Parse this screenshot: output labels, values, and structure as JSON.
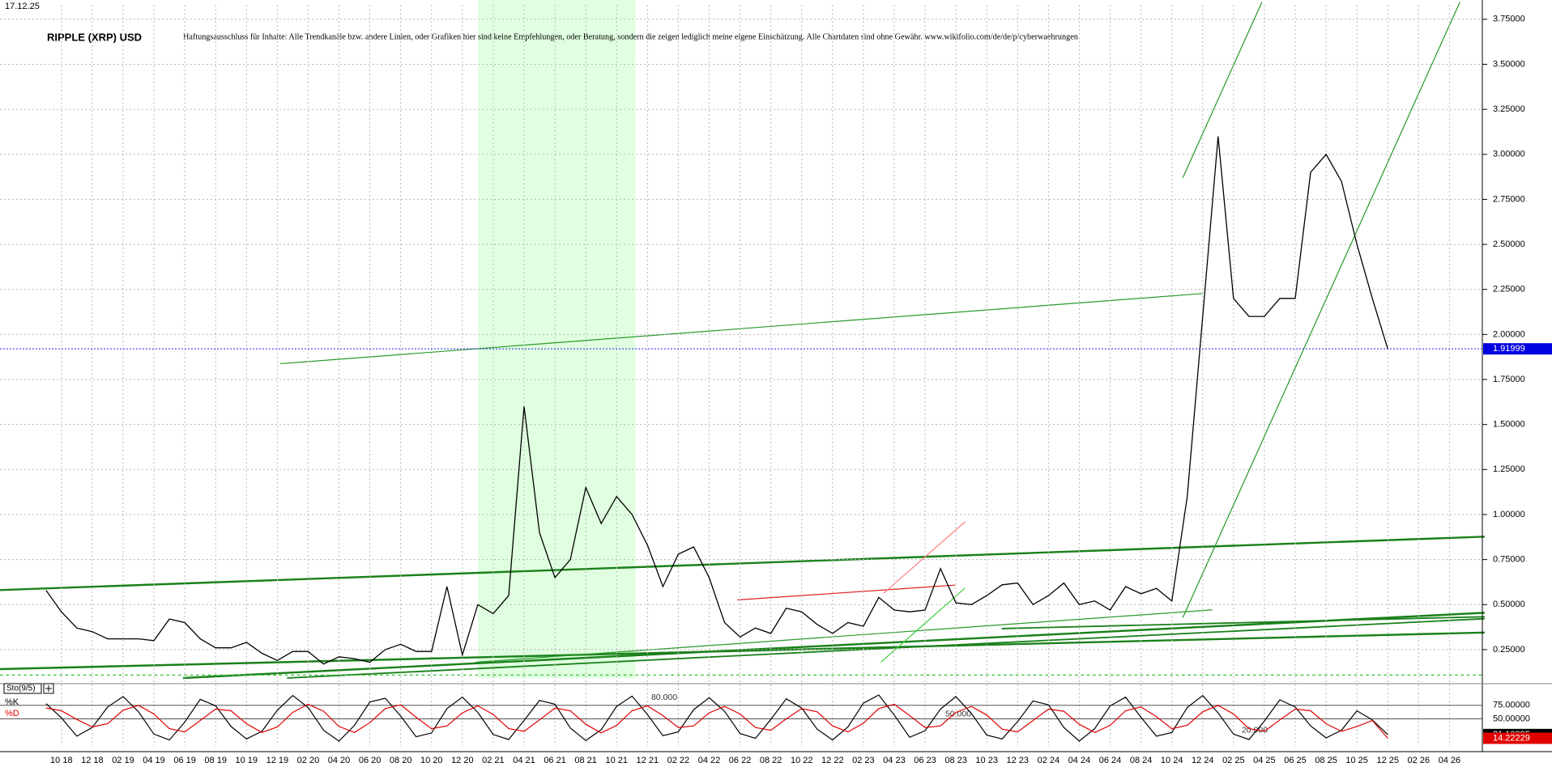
{
  "date": "17.12.25",
  "chart_data": {
    "type": "line",
    "title": "RIPPLE (XRP) USD",
    "subtitle": "Haftungsausschluss für Inhalte: Alle Trendkanäle bzw. andere Linien, oder Grafiken hier sind keine Empfehlungen, oder Beratung, sondern die zeigen lediglich meine eigene Einschätzung. Alle Chartdaten sind ohne Gewähr.  www.wikifolio.com/de/de/p/cyberwaehrungen",
    "indicator": "Sto(9/5)",
    "categories": [
      null,
      "10 18",
      null,
      "12 18",
      null,
      "02 19",
      null,
      "04 19",
      null,
      "06 19",
      null,
      "08 19",
      null,
      "10 19",
      null,
      "12 19",
      null,
      "02 20",
      null,
      "04 20",
      null,
      "06 20",
      null,
      "08 20",
      null,
      "10 20",
      null,
      "12 20",
      null,
      "02 21",
      null,
      "04 21",
      null,
      "06 21",
      null,
      "08 21",
      null,
      "10 21",
      null,
      "12 21",
      null,
      "02 22",
      null,
      "04 22",
      null,
      "06 22",
      null,
      "08 22",
      null,
      "10 22",
      null,
      "12 22",
      null,
      "02 23",
      null,
      "04 23",
      null,
      "06 23",
      null,
      "08 23",
      null,
      "10 23",
      null,
      "12 23",
      null,
      "02 24",
      null,
      "04 24",
      null,
      "06 24",
      null,
      "08 24",
      null,
      "10 24",
      null,
      "12 24",
      null,
      "02 25",
      null,
      "04 25",
      null,
      "06 25",
      null,
      "08 25",
      null,
      "10 25",
      null,
      "12 25",
      null,
      "02 26",
      null,
      "04 26"
    ],
    "values": [
      0.58,
      0.46,
      0.37,
      0.35,
      0.31,
      0.31,
      0.31,
      0.3,
      0.42,
      0.4,
      0.31,
      0.26,
      0.26,
      0.29,
      0.23,
      0.19,
      0.24,
      0.24,
      0.17,
      0.21,
      0.2,
      0.18,
      0.25,
      0.28,
      0.24,
      0.24,
      0.6,
      0.22,
      0.5,
      0.45,
      0.55,
      1.6,
      0.9,
      0.65,
      0.75,
      1.15,
      0.95,
      1.1,
      1.0,
      0.83,
      0.6,
      0.78,
      0.82,
      0.65,
      0.4,
      0.32,
      0.37,
      0.34,
      0.48,
      0.46,
      0.39,
      0.34,
      0.4,
      0.38,
      0.54,
      0.47,
      0.46,
      0.47,
      0.7,
      0.51,
      0.5,
      0.55,
      0.61,
      0.62,
      0.5,
      0.55,
      0.62,
      0.5,
      0.52,
      0.47,
      0.6,
      0.56,
      0.59,
      0.52,
      1.1,
      2.1,
      3.1,
      2.2,
      2.1,
      2.1,
      2.2,
      2.2,
      2.9,
      3.0,
      2.85,
      2.5,
      2.2,
      1.91999,
      null,
      null,
      null,
      null
    ],
    "color": "#000000",
    "ylim": [
      0.07,
      3.83
    ],
    "yticks": [
      {
        "value": 0.25,
        "label": "0.25000"
      },
      {
        "value": 0.5,
        "label": "0.50000"
      },
      {
        "value": 0.75,
        "label": "0.75000"
      },
      {
        "value": 1,
        "label": "1.00000"
      },
      {
        "value": 1.25,
        "label": "1.25000"
      },
      {
        "value": 1.5,
        "label": "1.50000"
      },
      {
        "value": 1.75,
        "label": "1.75000"
      },
      {
        "value": 2,
        "label": "2.00000"
      },
      {
        "value": 2.25,
        "label": "2.25000"
      },
      {
        "value": 2.5,
        "label": "2.50000"
      },
      {
        "value": 2.75,
        "label": "2.75000"
      },
      {
        "value": 3,
        "label": "3.00000"
      },
      {
        "value": 3.25,
        "label": "3.25000"
      },
      {
        "value": 3.5,
        "label": "3.50000"
      },
      {
        "value": 3.75,
        "label": "3.75000"
      }
    ],
    "series": [
      {
        "name": "%K",
        "color": "#000000",
        "axis": "y2",
        "values": [
          78,
          52,
          18,
          34,
          72,
          91,
          63,
          22,
          11,
          44,
          86,
          74,
          36,
          13,
          27,
          66,
          93,
          71,
          29,
          9,
          38,
          81,
          88,
          55,
          17,
          24,
          69,
          90,
          62,
          21,
          12,
          47,
          84,
          77,
          33,
          10,
          30,
          73,
          92,
          58,
          19,
          26,
          67,
          89,
          64,
          23,
          14,
          49,
          87,
          70,
          31,
          11,
          35,
          79,
          94,
          57,
          16,
          28,
          68,
          91,
          60,
          20,
          13,
          45,
          83,
          76,
          34,
          9,
          32,
          74,
          90,
          53,
          18,
          25,
          71,
          93,
          61,
          22,
          12,
          46,
          85,
          72,
          37,
          15,
          29,
          65,
          48,
          21.10095,
          null,
          null,
          null,
          null
        ]
      },
      {
        "name": "%D",
        "color": "#e00000",
        "axis": "y2",
        "values": [
          70,
          65,
          49,
          35,
          41,
          66,
          75,
          59,
          32,
          26,
          47,
          68,
          65,
          41,
          25,
          35,
          62,
          77,
          64,
          36,
          25,
          43,
          69,
          76,
          53,
          32,
          37,
          61,
          74,
          58,
          32,
          27,
          48,
          70,
          65,
          40,
          24,
          38,
          65,
          74,
          56,
          34,
          37,
          61,
          73,
          59,
          34,
          29,
          50,
          69,
          63,
          37,
          26,
          42,
          69,
          77,
          56,
          34,
          37,
          62,
          73,
          57,
          31,
          26,
          47,
          68,
          64,
          40,
          25,
          38,
          65,
          72,
          54,
          32,
          38,
          63,
          75,
          59,
          32,
          27,
          48,
          68,
          65,
          41,
          27,
          36,
          47,
          14.22229,
          null,
          null,
          null,
          null
        ]
      }
    ],
    "y2lim": [
      0,
      100
    ],
    "y2ticks": [
      {
        "value": 75,
        "label": "75.00000"
      },
      {
        "value": 50,
        "label": "50.00000"
      }
    ],
    "levels": [
      {
        "value": 80,
        "label": "80.000"
      },
      {
        "value": 50,
        "label": "50.000"
      },
      {
        "value": 20,
        "label": "20.000"
      }
    ],
    "grid": true
  }
}
